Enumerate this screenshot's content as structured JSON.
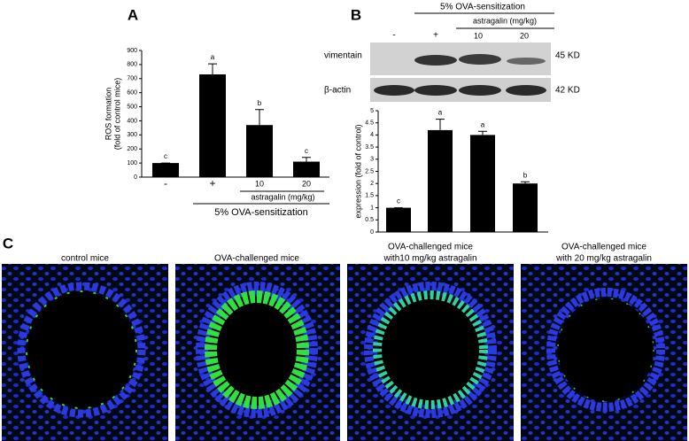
{
  "panel_labels": [
    "A",
    "B",
    "C"
  ],
  "chart_data": [
    {
      "type": "bar",
      "y_label_lines": [
        "ROS formation",
        "(fold of control mice)"
      ],
      "categories": [
        "-",
        "+",
        "10",
        "20"
      ],
      "values": [
        100,
        730,
        370,
        110
      ],
      "errors": [
        0,
        75,
        110,
        30
      ],
      "letters": [
        "c",
        "a",
        "b",
        "c"
      ],
      "color": "#000000",
      "ylim": [
        0,
        900
      ],
      "yticks": [
        0,
        100,
        200,
        300,
        400,
        500,
        600,
        700,
        800,
        900
      ],
      "group_labels": [
        "astragalin (mg/kg)",
        "5% OVA-sensitization"
      ]
    },
    {
      "type": "bar",
      "y_label_lines": [
        "expression (fold of control)"
      ],
      "categories": [
        null,
        null,
        null,
        null
      ],
      "values": [
        1,
        4.2,
        4.0,
        2.0
      ],
      "errors": [
        0,
        0.45,
        0.15,
        0.07
      ],
      "letters": [
        "c",
        "a",
        "a",
        "b"
      ],
      "color": "#000000",
      "ylim": [
        0,
        5
      ],
      "yticks": [
        0,
        0.5,
        1,
        1.5,
        2,
        2.5,
        3,
        3.5,
        4,
        4.5,
        5
      ]
    }
  ],
  "blot": {
    "header": "5% OVA-sensitization",
    "subheader": "astragalin (mg/kg)",
    "lanes": [
      "-",
      "+",
      "10",
      "20"
    ],
    "rows": [
      {
        "name": "vimentain",
        "size": "45 KD"
      },
      {
        "name": "β-actin",
        "size": "42 KD"
      }
    ]
  },
  "micrographs": [
    {
      "caption": [
        "control mice"
      ]
    },
    {
      "caption": [
        "OVA-challenged  mice"
      ]
    },
    {
      "caption": [
        "OVA-challenged mice",
        "with10 mg/kg astragalin"
      ]
    },
    {
      "caption": [
        "OVA-challenged mice",
        "with 20  mg/kg astragalin"
      ]
    }
  ]
}
